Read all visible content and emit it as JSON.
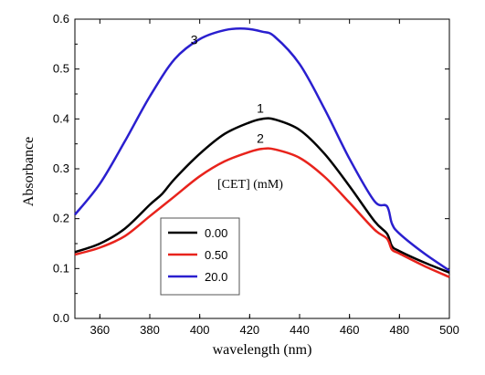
{
  "chart_data": {
    "type": "line",
    "title": "",
    "xlabel": "wavelength (nm)",
    "ylabel": "Absorbance",
    "xlim": [
      350,
      500
    ],
    "ylim": [
      0.0,
      0.6
    ],
    "x_ticks": [
      "360",
      "380",
      "400",
      "420",
      "440",
      "460",
      "480",
      "500"
    ],
    "y_ticks": [
      "0.0",
      "0.1",
      "0.2",
      "0.3",
      "0.4",
      "0.5",
      "0.6"
    ],
    "grid": false,
    "legend_title": "[CET] (mM)",
    "legend_position": "lower-left",
    "series": [
      {
        "name": "0.00",
        "label": "1",
        "color": "#000000",
        "points": [
          [
            350,
            0.133
          ],
          [
            360,
            0.15
          ],
          [
            370,
            0.18
          ],
          [
            380,
            0.228
          ],
          [
            385,
            0.25
          ],
          [
            390,
            0.28
          ],
          [
            400,
            0.33
          ],
          [
            410,
            0.37
          ],
          [
            420,
            0.393
          ],
          [
            425,
            0.4
          ],
          [
            430,
            0.399
          ],
          [
            440,
            0.378
          ],
          [
            450,
            0.33
          ],
          [
            460,
            0.265
          ],
          [
            470,
            0.195
          ],
          [
            475,
            0.17
          ],
          [
            477,
            0.145
          ],
          [
            480,
            0.135
          ],
          [
            490,
            0.112
          ],
          [
            500,
            0.092
          ]
        ]
      },
      {
        "name": "0.50",
        "label": "2",
        "color": "#e8231c",
        "points": [
          [
            350,
            0.128
          ],
          [
            360,
            0.142
          ],
          [
            370,
            0.165
          ],
          [
            380,
            0.205
          ],
          [
            390,
            0.245
          ],
          [
            400,
            0.285
          ],
          [
            410,
            0.315
          ],
          [
            420,
            0.334
          ],
          [
            425,
            0.34
          ],
          [
            430,
            0.339
          ],
          [
            440,
            0.322
          ],
          [
            450,
            0.284
          ],
          [
            460,
            0.232
          ],
          [
            470,
            0.178
          ],
          [
            475,
            0.16
          ],
          [
            477,
            0.138
          ],
          [
            480,
            0.13
          ],
          [
            490,
            0.105
          ],
          [
            500,
            0.083
          ]
        ]
      },
      {
        "name": "20.0",
        "label": "3",
        "color": "#2a1fcf",
        "points": [
          [
            350,
            0.208
          ],
          [
            360,
            0.27
          ],
          [
            370,
            0.355
          ],
          [
            380,
            0.445
          ],
          [
            390,
            0.52
          ],
          [
            400,
            0.56
          ],
          [
            410,
            0.578
          ],
          [
            418,
            0.581
          ],
          [
            425,
            0.575
          ],
          [
            430,
            0.565
          ],
          [
            440,
            0.51
          ],
          [
            450,
            0.42
          ],
          [
            460,
            0.32
          ],
          [
            470,
            0.235
          ],
          [
            475,
            0.225
          ],
          [
            477,
            0.19
          ],
          [
            480,
            0.17
          ],
          [
            490,
            0.13
          ],
          [
            500,
            0.096
          ]
        ]
      }
    ]
  }
}
